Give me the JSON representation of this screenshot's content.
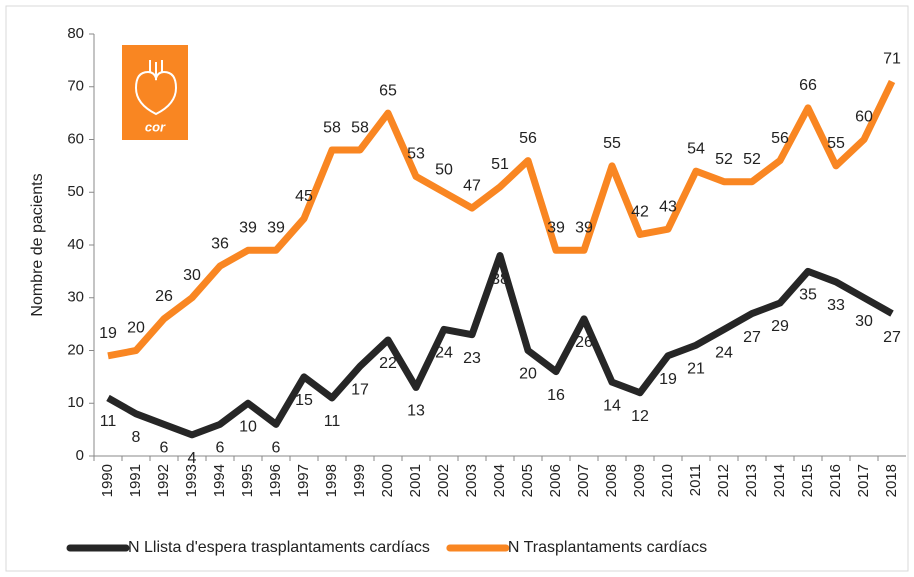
{
  "chart_data": {
    "type": "line",
    "y_label": "Nombre de pacients",
    "logo": "cor",
    "categories": [
      "1990",
      "1991",
      "1992",
      "1993",
      "1994",
      "1995",
      "1996",
      "1997",
      "1998",
      "1999",
      "2000",
      "2001",
      "2002",
      "2003",
      "2004",
      "2005",
      "2006",
      "2007",
      "2008",
      "2009",
      "2010",
      "2011",
      "2012",
      "2013",
      "2014",
      "2015",
      "2016",
      "2017",
      "2018"
    ],
    "series": [
      {
        "name": "N Llista d'espera trasplantaments cardíacs",
        "color": "#262626",
        "values": [
          11,
          8,
          6,
          4,
          6,
          10,
          6,
          15,
          11,
          17,
          22,
          13,
          24,
          23,
          38,
          20,
          16,
          26,
          14,
          12,
          19,
          21,
          24,
          27,
          29,
          35,
          33,
          30,
          27
        ]
      },
      {
        "name": "N Trasplantaments cardíacs",
        "color": "#f98622",
        "values": [
          19,
          20,
          26,
          30,
          36,
          39,
          39,
          45,
          58,
          58,
          65,
          53,
          50,
          47,
          51,
          56,
          39,
          39,
          55,
          42,
          43,
          54,
          52,
          52,
          56,
          66,
          55,
          60,
          71
        ]
      }
    ],
    "ylim": [
      0,
      80
    ],
    "yticks": [
      0,
      10,
      20,
      30,
      40,
      50,
      60,
      70,
      80
    ],
    "legend": "bottom"
  }
}
